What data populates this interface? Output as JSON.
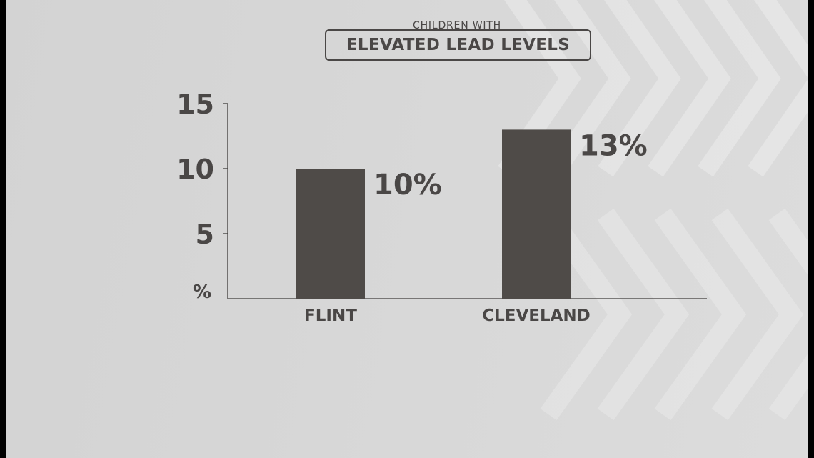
{
  "chart_data": {
    "type": "bar",
    "title": "ELEVATED LEAD LEVELS",
    "subtitle": "CHILDREN WITH",
    "ylabel": "%",
    "xlabel": "",
    "ylim": [
      0,
      15
    ],
    "yticks": [
      5,
      10,
      15
    ],
    "categories": [
      "FLINT",
      "CLEVELAND"
    ],
    "values": [
      10,
      13
    ],
    "data_labels": [
      "10%",
      "13%"
    ],
    "grid": false,
    "legend": "none"
  },
  "colors": {
    "background": "#d6d6d6",
    "bar": "#4f4b48",
    "text": "#4a4746",
    "frame": "#000000"
  }
}
